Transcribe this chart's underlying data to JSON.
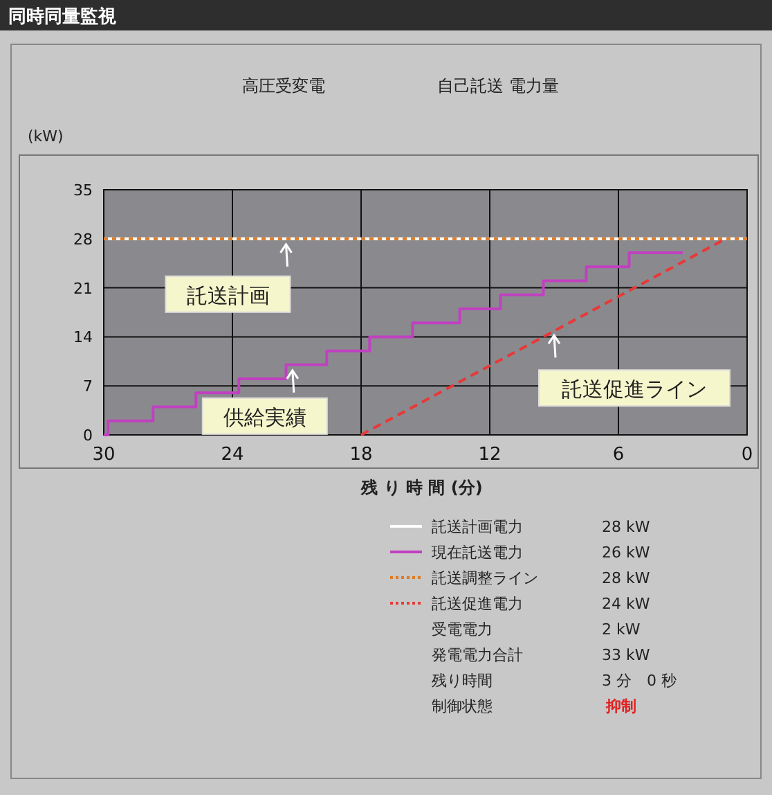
{
  "chart_data": {
    "type": "line",
    "title": "高圧受変電",
    "subtitle": "自己託送 電力量",
    "xlabel": "残 り 時 間 (分)",
    "ylabel": "(kW)",
    "xlim": [
      30,
      0
    ],
    "xticks": [
      30,
      24,
      18,
      12,
      6,
      0
    ],
    "ylim": [
      0,
      35
    ],
    "yticks": [
      0,
      7,
      14,
      21,
      28,
      35
    ],
    "grid": true,
    "legend": "bottom",
    "marker": "none",
    "series": [
      {
        "name": "託送計画電力",
        "color": "#ffffff",
        "line_style": "solid",
        "x": [
          30,
          0
        ],
        "values": [
          28,
          28
        ]
      },
      {
        "name": "現在託送電力",
        "color": "#c040c0",
        "type": "step",
        "line_style": "solid",
        "x": [
          30,
          29.8,
          27.7,
          25.7,
          23.7,
          21.5,
          19.6,
          17.6,
          15.6,
          13.4,
          11.5,
          9.5,
          7.5,
          5.5,
          3
        ],
        "values": [
          0,
          2,
          4,
          6,
          8,
          10,
          12,
          14,
          16,
          18,
          20,
          22,
          24,
          26,
          26
        ]
      },
      {
        "name": "託送調整ライン",
        "color": "#e07a20",
        "line_style": "dotted",
        "x": [
          30,
          0
        ],
        "values": [
          28,
          28
        ]
      },
      {
        "name": "託送促進電力",
        "color": "#e83838",
        "line_style": "dashed",
        "x": [
          18,
          1
        ],
        "values": [
          0,
          28
        ]
      }
    ],
    "annotations": [
      "同時同量監視",
      "28 kW",
      "26 kW",
      "28 kW",
      "24 kW",
      "受電電力",
      "2 kW",
      "発電電力合計",
      "33 kW",
      "残り時間",
      "3 分　0 秒",
      "制御状態",
      "抑制",
      {
        "text": "託送計画",
        "x": 21.5,
        "y": 28
      },
      {
        "text": "供給実績",
        "x": 21.2,
        "y": 10
      },
      {
        "text": "託送促進ライン",
        "x": 9,
        "y": 15
      }
    ]
  }
}
